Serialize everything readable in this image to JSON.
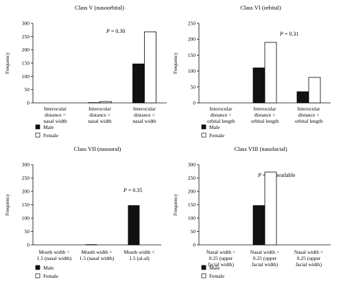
{
  "colors": {
    "male": "#111111",
    "female": "#ffffff",
    "axis": "#000000"
  },
  "chart_data": [
    {
      "type": "bar",
      "title": "Class V (nasoorbital)",
      "ylabel": "Frequency",
      "ylim": [
        0,
        300
      ],
      "yticks": [
        0,
        50,
        100,
        150,
        200,
        250,
        300
      ],
      "annotation": "P = 0.30",
      "categories": [
        [
          "Interocular",
          "distance =",
          "nasal width"
        ],
        [
          "Interocular",
          "distance >",
          "nasal width"
        ],
        [
          "Interocular",
          "distance <",
          "nasal width"
        ]
      ],
      "series": [
        {
          "name": "Male",
          "values": [
            0,
            1,
            147
          ]
        },
        {
          "name": "Female",
          "values": [
            0,
            5,
            268
          ]
        }
      ],
      "legend": [
        "Male",
        "Female"
      ]
    },
    {
      "type": "bar",
      "title": "Class VI (orbital)",
      "ylabel": "Frequency",
      "ylim": [
        0,
        250
      ],
      "yticks": [
        0,
        50,
        100,
        150,
        200,
        250
      ],
      "annotation": "P = 0.31",
      "categories": [
        [
          "Interocular",
          "distance =",
          "orbital length"
        ],
        [
          "Interocular",
          "distance >",
          "orbital length"
        ],
        [
          "Interocular",
          "distance <",
          "orbital length"
        ]
      ],
      "series": [
        {
          "name": "Male",
          "values": [
            0,
            110,
            35
          ]
        },
        {
          "name": "Female",
          "values": [
            0,
            190,
            80
          ]
        }
      ],
      "legend": [
        "Male",
        "Female"
      ]
    },
    {
      "type": "bar",
      "title": "Class VII (nasooral)",
      "ylabel": "Frequency",
      "ylim": [
        0,
        300
      ],
      "yticks": [
        0,
        50,
        100,
        150,
        200,
        250,
        300
      ],
      "annotation": "P = 0.35",
      "categories": [
        [
          "Mouth width =",
          "1.5 (nasal width)"
        ],
        [
          "Mouth width >",
          "1.5 (nasal width)"
        ],
        [
          "Mouth width <",
          "1.5 (al-al)"
        ]
      ],
      "series": [
        {
          "name": "Male",
          "values": [
            0,
            1,
            147
          ]
        },
        {
          "name": "Female",
          "values": [
            0,
            0,
            0
          ]
        }
      ],
      "legend": [
        "Male",
        "Female"
      ]
    },
    {
      "type": "bar",
      "title": "Class VIII (nasofacial)",
      "ylabel": "Frequency",
      "ylim": [
        0,
        300
      ],
      "yticks": [
        0,
        50,
        100,
        150,
        200,
        250,
        300
      ],
      "annotation": "P = not available",
      "categories": [
        [
          "Nasal width =",
          "0.25 (upper",
          "facial width)"
        ],
        [
          "Nasal width >",
          "0.25 (upper",
          "facial width)"
        ],
        [
          "Nasal width <",
          "0.25 (upper",
          "facial width)"
        ]
      ],
      "series": [
        {
          "name": "Male",
          "values": [
            0,
            147,
            0
          ]
        },
        {
          "name": "Female",
          "values": [
            0,
            272,
            0
          ]
        }
      ],
      "legend": [
        "Male",
        "Female"
      ]
    }
  ]
}
